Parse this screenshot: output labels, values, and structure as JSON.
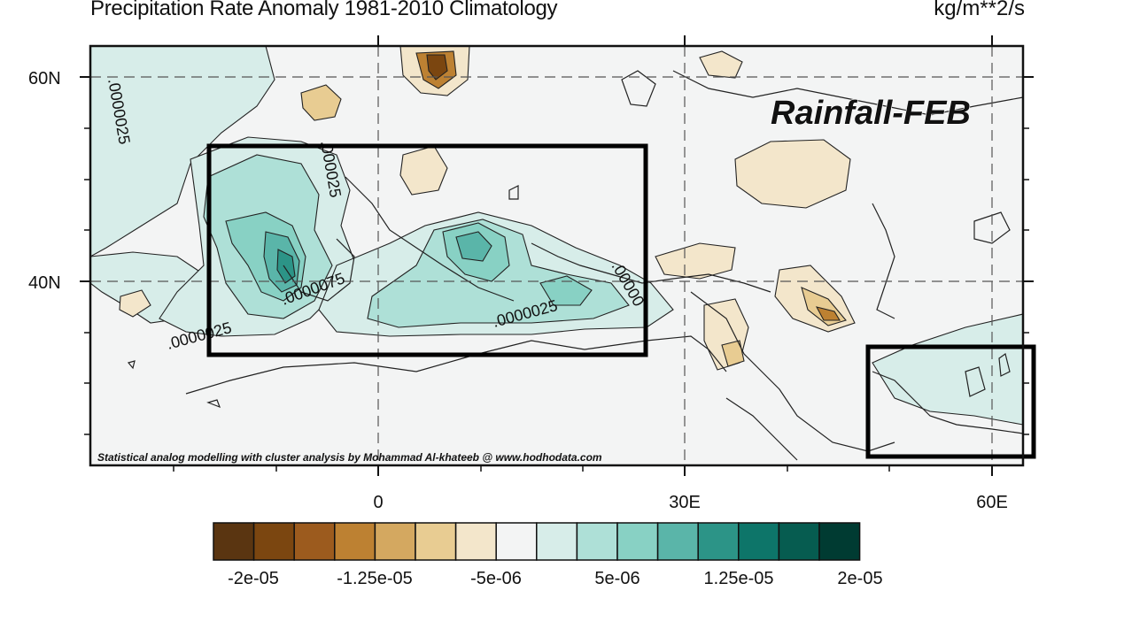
{
  "title": "Precipitation Rate Anomaly 1981-2010 Climatology",
  "units": "kg/m**2/s",
  "overlay_label": "Rainfall-FEB",
  "credit": "Statistical analog modelling with cluster analysis by Mohammad Al-khateeb @ www.hodhodata.com",
  "lat_labels": [
    "60N",
    "40N"
  ],
  "lon_labels": [
    "0",
    "30E",
    "60E"
  ],
  "contour_labels": [
    ".0000025",
    ".000025",
    ".0000075",
    ".0000025",
    ".0000025",
    ".00000"
  ],
  "colorbar": {
    "labels": [
      "-2e-05",
      "-1.25e-05",
      "-5e-06",
      "5e-06",
      "1.25e-05",
      "2e-05"
    ],
    "colors": [
      "#5a3511",
      "#7b4610",
      "#9c5b1e",
      "#bd8132",
      "#d4a860",
      "#e8cc92",
      "#f3e6cb",
      "#f3f4f4",
      "#d7ede9",
      "#aee0d7",
      "#88d1c4",
      "#5ab5a9",
      "#2c9487",
      "#0d7569",
      "#065c50",
      "#003b32"
    ]
  },
  "colors": {
    "background": "#f3f4f4",
    "positive_light": "#d7ede9",
    "positive_mid": "#aee0d7",
    "positive_strong": "#88d1c4",
    "negative_light": "#f3e6cb",
    "negative_mid": "#e8cc92"
  }
}
